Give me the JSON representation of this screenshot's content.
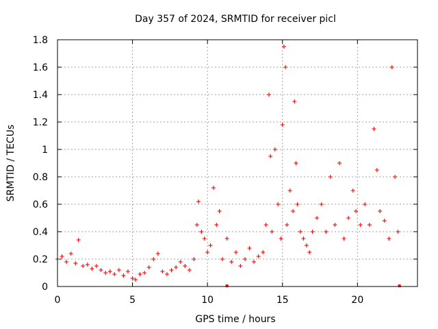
{
  "chart_data": {
    "type": "scatter",
    "title": "Day 357 of 2024, SRMTID for receiver picl",
    "xlabel": "GPS time / hours",
    "ylabel": "SRMTID / TECUs",
    "xlim": [
      0,
      24
    ],
    "ylim": [
      0,
      1.8
    ],
    "xticks": [
      0,
      5,
      10,
      15,
      20
    ],
    "xtick_labels": [
      "0",
      "5",
      "10",
      "15",
      "20"
    ],
    "yticks": [
      0,
      0.2,
      0.4,
      0.6,
      0.8,
      1.0,
      1.2,
      1.4,
      1.6,
      1.8
    ],
    "ytick_labels": [
      "0",
      "0.2",
      "0.4",
      "0.6",
      "0.8",
      "1",
      "1.2",
      "1.4",
      "1.6",
      "1.8"
    ],
    "grid": true,
    "marker": "+",
    "color": "#ff0000",
    "series": [
      {
        "name": "SRMTID",
        "x": [
          0.0,
          0.3,
          0.6,
          0.9,
          1.2,
          1.4,
          1.7,
          2.0,
          2.3,
          2.6,
          2.9,
          3.2,
          3.5,
          3.8,
          4.1,
          4.4,
          4.7,
          5.0,
          5.2,
          5.5,
          5.8,
          6.1,
          6.4,
          6.7,
          7.0,
          7.3,
          7.6,
          7.9,
          8.2,
          8.5,
          8.8,
          9.1,
          9.3,
          9.4,
          9.6,
          9.8,
          10.0,
          10.2,
          10.4,
          10.6,
          10.8,
          11.0,
          11.3,
          11.6,
          11.9,
          12.2,
          12.5,
          12.8,
          13.1,
          13.4,
          13.7,
          13.9,
          14.1,
          14.2,
          14.3,
          14.5,
          14.7,
          14.9,
          15.0,
          15.1,
          15.2,
          15.3,
          15.5,
          15.7,
          15.8,
          15.9,
          16.0,
          16.2,
          16.4,
          16.6,
          16.8,
          17.0,
          17.3,
          17.6,
          17.9,
          18.2,
          18.5,
          18.8,
          19.1,
          19.4,
          19.7,
          19.9,
          20.2,
          20.5,
          20.8,
          21.1,
          21.3,
          21.5,
          21.8,
          22.1,
          22.3,
          22.5,
          22.7
        ],
        "y": [
          0.2,
          0.22,
          0.18,
          0.24,
          0.17,
          0.34,
          0.15,
          0.16,
          0.13,
          0.15,
          0.12,
          0.1,
          0.11,
          0.09,
          0.12,
          0.08,
          0.11,
          0.06,
          0.05,
          0.09,
          0.1,
          0.14,
          0.2,
          0.24,
          0.11,
          0.09,
          0.12,
          0.14,
          0.18,
          0.15,
          0.12,
          0.2,
          0.45,
          0.62,
          0.4,
          0.35,
          0.25,
          0.3,
          0.72,
          0.45,
          0.55,
          0.2,
          0.35,
          0.18,
          0.25,
          0.15,
          0.2,
          0.28,
          0.18,
          0.22,
          0.25,
          0.45,
          1.4,
          0.95,
          0.4,
          1.0,
          0.6,
          0.35,
          1.18,
          1.75,
          1.6,
          0.45,
          0.7,
          0.55,
          1.35,
          0.9,
          0.6,
          0.4,
          0.35,
          0.3,
          0.25,
          0.4,
          0.5,
          0.6,
          0.4,
          0.8,
          0.45,
          0.9,
          0.35,
          0.5,
          0.7,
          0.55,
          0.45,
          0.6,
          0.45,
          1.15,
          0.85,
          0.55,
          0.48,
          0.35,
          1.6,
          0.8,
          0.4
        ],
        "extras": [
          {
            "x": 11.3,
            "y": 0.0
          },
          {
            "x": 22.8,
            "y": 0.0
          }
        ]
      }
    ]
  }
}
